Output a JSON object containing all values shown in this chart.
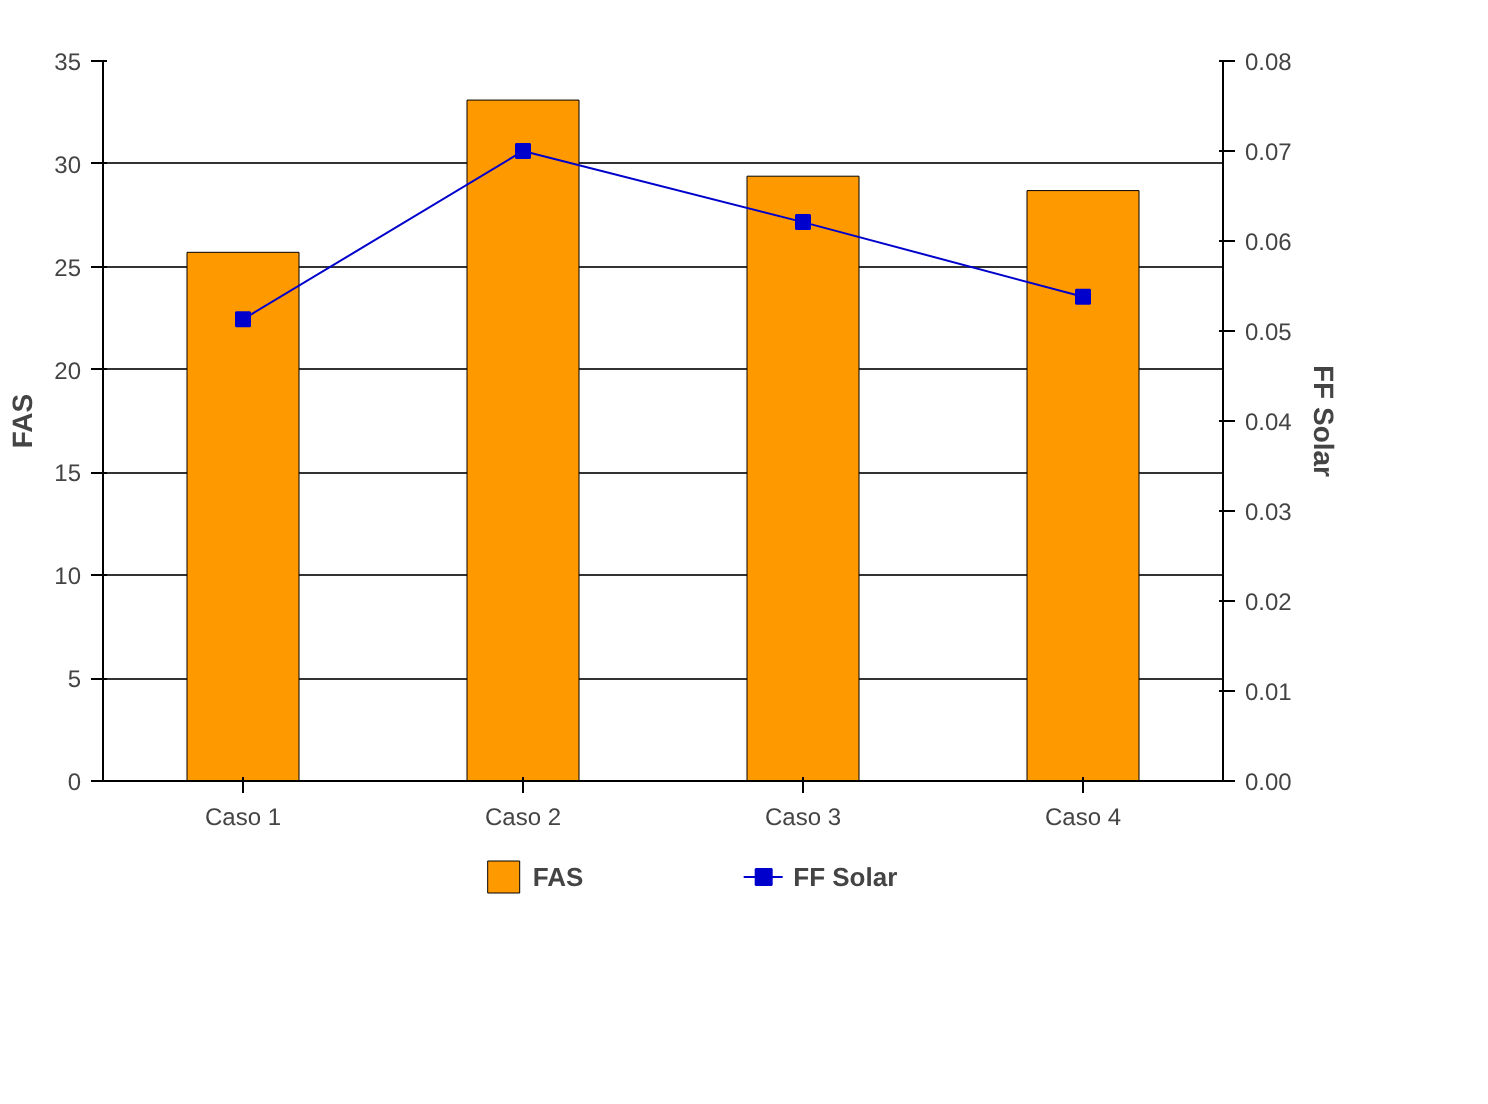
{
  "chart_data": {
    "type": "bar",
    "categories": [
      "Caso 1",
      "Caso 2",
      "Caso 3",
      "Caso 4"
    ],
    "ylabel": "FAS",
    "y2label": "FF Solar",
    "ylim": [
      0,
      35
    ],
    "yticks": [
      0,
      5,
      10,
      15,
      20,
      25,
      30,
      35
    ],
    "y2lim": [
      0,
      0.08
    ],
    "y2ticks": [
      {
        "value": 0,
        "label": "0.00"
      },
      {
        "value": 0.01,
        "label": "0.01"
      },
      {
        "value": 0.02,
        "label": "0.02"
      },
      {
        "value": 0.03,
        "label": "0.03"
      },
      {
        "value": 0.04,
        "label": "0.04"
      },
      {
        "value": 0.05,
        "label": "0.05"
      },
      {
        "value": 0.06,
        "label": "0.06"
      },
      {
        "value": 0.07,
        "label": "0.07"
      },
      {
        "value": 0.08,
        "label": "0.08"
      }
    ],
    "grid": "y",
    "legend": "bottom",
    "series": [
      {
        "name": "FAS",
        "color": "#ff9900",
        "values": [
          25.7,
          33.1,
          29.4,
          28.7
        ]
      },
      {
        "name": "FF Solar",
        "type": "line",
        "axis": "y2",
        "color": "#0000cc",
        "marker": "square",
        "values": [
          0.0513,
          0.07,
          0.0621,
          0.0538
        ]
      }
    ]
  }
}
